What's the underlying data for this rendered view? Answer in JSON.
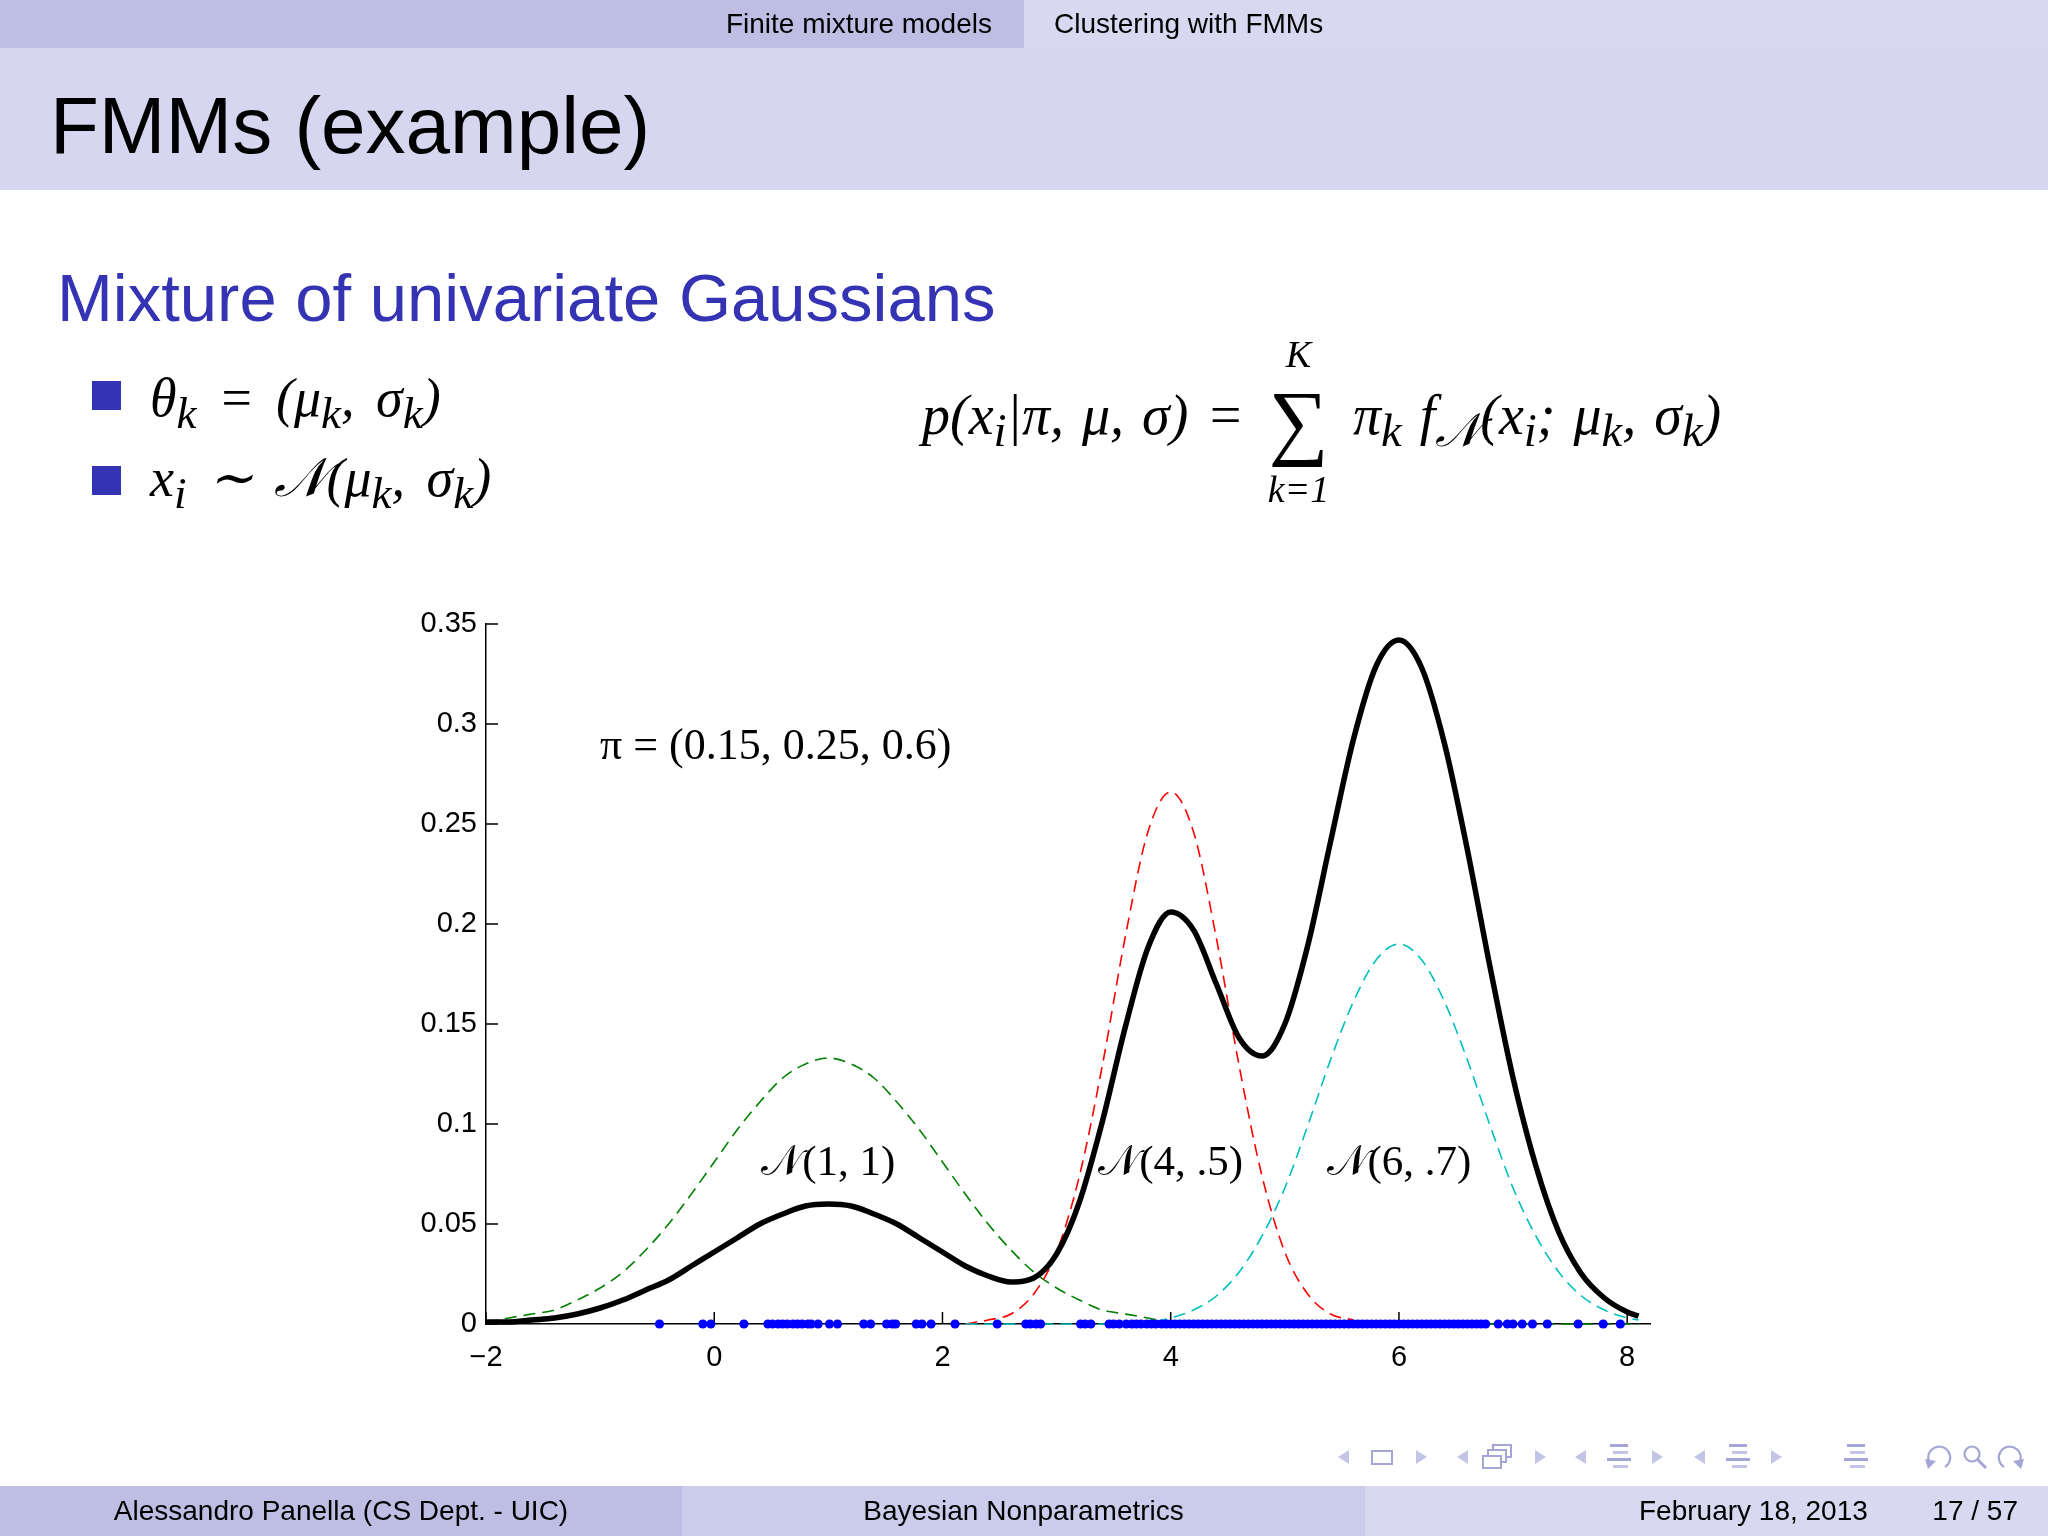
{
  "chart_data": {
    "type": "line",
    "title": "FMMs (example)",
    "subtitle": "Mixture of univariate Gaussians",
    "x": [
      -2,
      -1.8,
      -1.6,
      -1.4,
      -1.2,
      -1,
      -0.8,
      -0.6,
      -0.4,
      -0.2,
      0,
      0.2,
      0.4,
      0.6,
      0.8,
      1,
      1.2,
      1.4,
      1.6,
      1.8,
      2,
      2.2,
      2.4,
      2.6,
      2.8,
      3,
      3.2,
      3.4,
      3.6,
      3.8,
      4,
      4.2,
      4.4,
      4.6,
      4.8,
      5,
      5.2,
      5.4,
      5.6,
      5.8,
      6,
      6.2,
      6.4,
      6.6,
      6.8,
      7,
      7.2,
      7.4,
      7.6,
      7.8,
      8,
      8.1
    ],
    "series": [
      {
        "name": "𝒩(1, 1)",
        "color": "#008000",
        "line_style": "dashed",
        "values": [
          0.001,
          0.003,
          0.005,
          0.007,
          0.012,
          0.018,
          0.026,
          0.037,
          0.05,
          0.065,
          0.081,
          0.097,
          0.111,
          0.123,
          0.13,
          0.133,
          0.13,
          0.123,
          0.111,
          0.097,
          0.081,
          0.065,
          0.05,
          0.037,
          0.026,
          0.018,
          0.012,
          0.007,
          0.005,
          0.003,
          0.001,
          0.001,
          0,
          0,
          0,
          0,
          0,
          0,
          0,
          0,
          0,
          0,
          0,
          0,
          0,
          0,
          0,
          0,
          0,
          0,
          0,
          0
        ]
      },
      {
        "name": "𝒩(4, .5)",
        "color": "#ff0000",
        "line_style": "dashed",
        "values": [
          null,
          null,
          null,
          null,
          null,
          null,
          null,
          null,
          null,
          null,
          null,
          null,
          null,
          null,
          null,
          null,
          null,
          null,
          null,
          null,
          null,
          0,
          0.002,
          0.005,
          0.015,
          0.036,
          0.074,
          0.129,
          0.193,
          0.246,
          0.266,
          0.246,
          0.193,
          0.129,
          0.074,
          0.036,
          0.015,
          0.005,
          0.002,
          null,
          null,
          null,
          null,
          null,
          null,
          null,
          null,
          null,
          null,
          null,
          null,
          null
        ]
      },
      {
        "name": "𝒩(6, .7)",
        "color": "#00bfbf",
        "line_style": "dashed",
        "values": [
          null,
          null,
          null,
          null,
          null,
          null,
          null,
          null,
          null,
          null,
          null,
          null,
          null,
          null,
          null,
          null,
          null,
          null,
          null,
          null,
          null,
          0,
          0,
          0,
          0,
          0,
          0,
          0,
          0.001,
          0.001,
          0.003,
          0.007,
          0.014,
          0.026,
          0.044,
          0.068,
          0.099,
          0.132,
          0.161,
          0.182,
          0.19,
          0.182,
          0.161,
          0.132,
          0.099,
          0.068,
          0.044,
          0.026,
          0.014,
          0.007,
          0.003,
          0.002
        ]
      },
      {
        "color": "#000000",
        "values": [
          0.001,
          0.001,
          0.002,
          0.003,
          0.005,
          0.008,
          0.012,
          0.017,
          0.022,
          0.029,
          0.036,
          0.043,
          0.05,
          0.055,
          0.059,
          0.06,
          0.059,
          0.055,
          0.05,
          0.043,
          0.036,
          0.029,
          0.024,
          0.021,
          0.023,
          0.035,
          0.061,
          0.101,
          0.148,
          0.188,
          0.206,
          0.197,
          0.17,
          0.143,
          0.134,
          0.15,
          0.189,
          0.241,
          0.292,
          0.329,
          0.342,
          0.328,
          0.29,
          0.237,
          0.178,
          0.123,
          0.079,
          0.046,
          0.025,
          0.013,
          0.006,
          0.004
        ]
      },
      {
        "type": "scatter",
        "color": "#0000ff",
        "marker": "circle",
        "x": [
          -0.48,
          -0.1,
          -0.03,
          0.26,
          0.47,
          0.51,
          0.56,
          0.6,
          0.64,
          0.69,
          0.73,
          0.77,
          0.82,
          0.85,
          0.91,
          1.01,
          1.08,
          1.31,
          1.37,
          1.51,
          1.56,
          1.59,
          1.77,
          1.82,
          1.9,
          2.11,
          2.48,
          2.73,
          2.77,
          2.82,
          2.86,
          3.21,
          3.25,
          3.3,
          3.46,
          3.5,
          3.55,
          3.61,
          3.66,
          3.7,
          3.74,
          3.79,
          3.83,
          3.87,
          3.92,
          3.96,
          4,
          4.04,
          4.08,
          4.12,
          4.16,
          4.2,
          4.24,
          4.28,
          4.32,
          4.36,
          4.4,
          4.44,
          4.48,
          4.52,
          4.56,
          4.6,
          4.64,
          4.68,
          4.72,
          4.76,
          4.8,
          4.84,
          4.88,
          4.92,
          4.96,
          5,
          5.04,
          5.08,
          5.12,
          5.16,
          5.2,
          5.24,
          5.28,
          5.32,
          5.36,
          5.4,
          5.44,
          5.48,
          5.52,
          5.56,
          5.6,
          5.64,
          5.68,
          5.72,
          5.76,
          5.8,
          5.84,
          5.88,
          5.92,
          5.96,
          6,
          6.04,
          6.08,
          6.12,
          6.16,
          6.2,
          6.24,
          6.28,
          6.32,
          6.36,
          6.4,
          6.44,
          6.48,
          6.52,
          6.56,
          6.6,
          6.64,
          6.68,
          6.72,
          6.76,
          6.87,
          6.95,
          7,
          7.08,
          7.17,
          7.3,
          7.57,
          7.79,
          7.94
        ],
        "values": [
          0,
          0,
          0,
          0,
          0,
          0,
          0,
          0,
          0,
          0,
          0,
          0,
          0,
          0,
          0,
          0,
          0,
          0,
          0,
          0,
          0,
          0,
          0,
          0,
          0,
          0,
          0,
          0,
          0,
          0,
          0,
          0,
          0,
          0,
          0,
          0,
          0,
          0,
          0,
          0,
          0,
          0,
          0,
          0,
          0,
          0,
          0,
          0,
          0,
          0,
          0,
          0,
          0,
          0,
          0,
          0,
          0,
          0,
          0,
          0,
          0,
          0,
          0,
          0,
          0,
          0,
          0,
          0,
          0,
          0,
          0,
          0,
          0,
          0,
          0,
          0,
          0,
          0,
          0,
          0,
          0,
          0,
          0,
          0,
          0,
          0,
          0,
          0,
          0,
          0,
          0,
          0,
          0,
          0,
          0,
          0,
          0,
          0,
          0,
          0,
          0,
          0,
          0,
          0,
          0,
          0,
          0,
          0,
          0,
          0,
          0,
          0,
          0,
          0,
          0,
          0,
          0,
          0,
          0,
          0,
          0,
          0,
          0,
          0,
          0
        ]
      }
    ],
    "line_style": "solid",
    "marker": "none",
    "xlim": [
      -2,
      8.2
    ],
    "xticks": [
      {
        "value": -2,
        "label": "−2"
      },
      0,
      2,
      4,
      6,
      8
    ],
    "ylim": [
      0,
      0.35
    ],
    "yticks": [
      0,
      0.05,
      0.1,
      0.15,
      0.2,
      0.25,
      0.3,
      0.35
    ],
    "annotations": [
      "π = (0.15, 0.25, 0.6)",
      "Finite mixture models",
      "Clustering with FMMs",
      "θ$_{k}$ = (μ$_{k}$, σ$_{k}$)",
      "x$_{i}$ ∼ 𝒩(μ$_{k}$, σ$_{k}$)",
      "p(x$_{i}$|π, μ, σ) = ∑$_{k=1}$$^{K}$ π$_{k}$ f$_{𝒩}$(x$_{i}$; μ$_{k}$, σ$_{k}$)",
      "Alessandro Panella (CS Dept. - UIC)",
      "Bayesian Nonparametrics",
      "February 18, 2013",
      "17 / 57"
    ]
  }
}
